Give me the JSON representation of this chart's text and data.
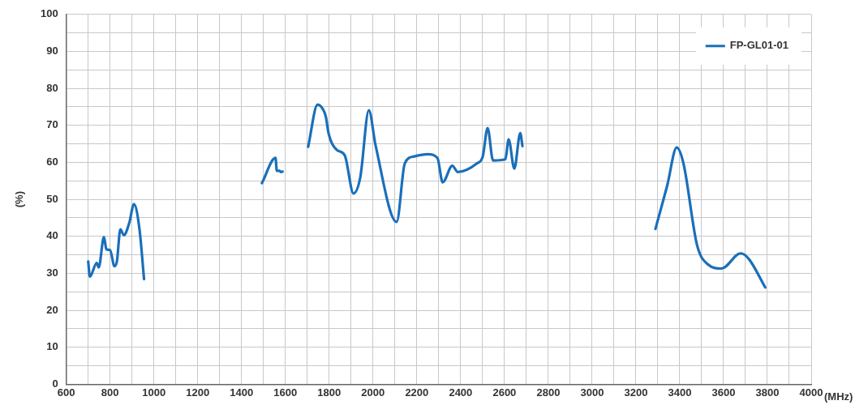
{
  "chart_data": {
    "type": "line",
    "xlabel": "(MHz)",
    "ylabel": "(%)",
    "xlim": [
      600,
      4000
    ],
    "xticks": [
      600,
      {
        "value": 700,
        "label": null
      },
      800,
      {
        "value": 900,
        "label": null
      },
      1000,
      {
        "value": 1100,
        "label": null
      },
      1200,
      {
        "value": 1300,
        "label": null
      },
      1400,
      {
        "value": 1500,
        "label": null
      },
      1600,
      {
        "value": 1700,
        "label": null
      },
      1800,
      {
        "value": 1900,
        "label": null
      },
      2000,
      {
        "value": 2100,
        "label": null
      },
      2200,
      {
        "value": 2300,
        "label": null
      },
      2400,
      {
        "value": 2500,
        "label": null
      },
      2600,
      {
        "value": 2700,
        "label": null
      },
      2800,
      {
        "value": 2900,
        "label": null
      },
      3000,
      {
        "value": 3100,
        "label": null
      },
      3200,
      {
        "value": 3300,
        "label": null
      },
      3400,
      {
        "value": 3500,
        "label": null
      },
      3600,
      {
        "value": 3700,
        "label": null
      },
      3800,
      {
        "value": 3900,
        "label": null
      },
      4000
    ],
    "ylim": [
      0,
      100
    ],
    "yticks": [
      0,
      {
        "value": 5,
        "label": null
      },
      10,
      {
        "value": 15,
        "label": null
      },
      20,
      {
        "value": 25,
        "label": null
      },
      30,
      {
        "value": 35,
        "label": null
      },
      40,
      {
        "value": 45,
        "label": null
      },
      50,
      {
        "value": 55,
        "label": null
      },
      60,
      {
        "value": 65,
        "label": null
      },
      70,
      {
        "value": 75,
        "label": null
      },
      80,
      {
        "value": 85,
        "label": null
      },
      90,
      {
        "value": 95,
        "label": null
      },
      100
    ],
    "grid": true,
    "legend": "top right",
    "marker": "none",
    "line_style": "solid",
    "series": [
      {
        "name": "FP-GL01-01",
        "color": "#1a6fba",
        "x": [
          700,
          708,
          739,
          748,
          772,
          783,
          800,
          820,
          831,
          847,
          863,
          887,
          909,
          934,
          955,
          1200,
          1493,
          1555,
          1561,
          1573,
          1580,
          1587,
          1650,
          1704,
          1747,
          1772,
          1785,
          1797,
          1834,
          1871,
          1911,
          1942,
          1981,
          2012,
          2108,
          2145,
          2188,
          2250,
          2294,
          2318,
          2362,
          2387,
          2474,
          2501,
          2523,
          2548,
          2604,
          2619,
          2645,
          2672,
          2682,
          3000,
          3289,
          3343,
          3386,
          3417,
          3479,
          3529,
          3591,
          3678,
          3715,
          3790
        ],
        "values": [
          33.2,
          29.1,
          32.8,
          31.6,
          39.8,
          36.5,
          36.3,
          31.9,
          33.2,
          41.9,
          40.3,
          43.5,
          48.7,
          42,
          28.4,
          null,
          54.4,
          61.2,
          57.7,
          57.7,
          57.4,
          57.5,
          null,
          64.2,
          75.6,
          74.3,
          72.3,
          67.9,
          63.4,
          61.9,
          51.6,
          56,
          74.1,
          64.5,
          43.9,
          59.7,
          61.6,
          62.2,
          61.2,
          54.6,
          59.1,
          57.4,
          59.7,
          61.6,
          69.3,
          60.5,
          60.8,
          66.2,
          58.3,
          67.9,
          64.4,
          null,
          42,
          53.8,
          64,
          59.7,
          37.6,
          32.4,
          31.3,
          35.4,
          33.9,
          26.2
        ]
      }
    ]
  }
}
